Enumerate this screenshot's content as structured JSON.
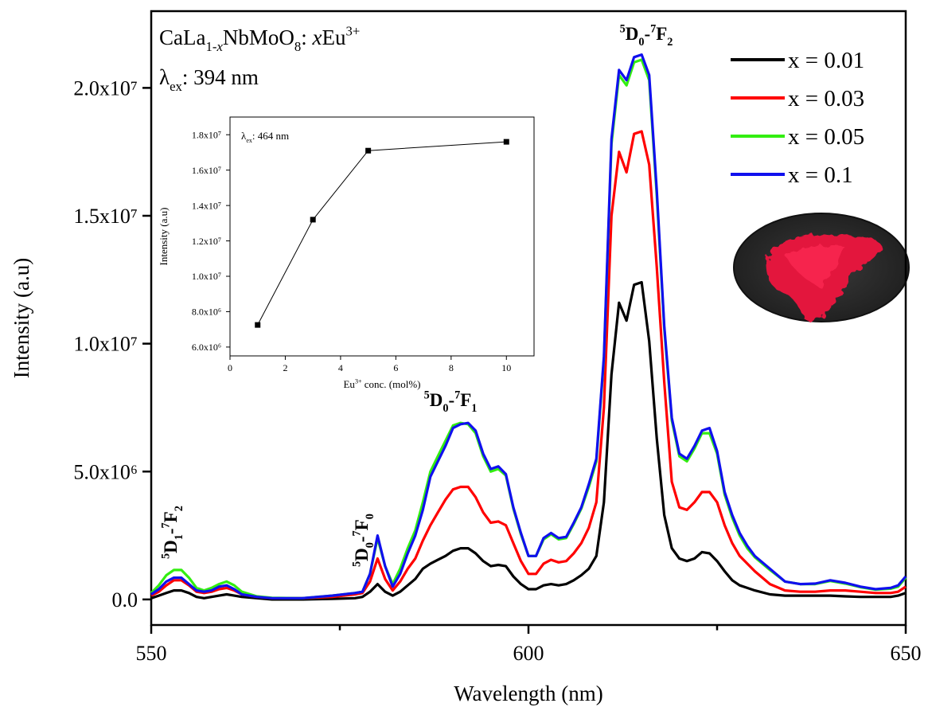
{
  "chart_data": [
    {
      "type": "line",
      "x_label": "Wavelength (nm)",
      "y_label": "Intensity (a.u)",
      "formula": [
        "CaLa",
        "1-",
        "x",
        "NbMoO",
        "8",
        ": ",
        "x",
        "Eu",
        "3+"
      ],
      "excitation": [
        "λ",
        "ex",
        ": 394 nm"
      ],
      "transitions": [
        [
          "5",
          "D",
          "1",
          "-",
          "7",
          "F",
          "2"
        ],
        [
          "5",
          "D",
          "0",
          "-",
          "7",
          "F",
          "0"
        ],
        [
          "5",
          "D",
          "0",
          "-",
          "7",
          "F",
          "1"
        ],
        [
          "5",
          "D",
          "0",
          "-",
          "7",
          "F",
          "2"
        ]
      ],
      "xlim": [
        550,
        650
      ],
      "xticks": [
        550,
        600,
        650
      ],
      "xminorticks": [
        575,
        625
      ],
      "ylim": [
        -1000000.0,
        23000000.0
      ],
      "yticks": [
        {
          "value": 0,
          "label": "0.0"
        },
        {
          "value": 5000000.0,
          "label": "5.0x10⁶"
        },
        {
          "value": 10000000.0,
          "label": "1.0x10⁷"
        },
        {
          "value": 15000000.0,
          "label": "1.5x10⁷"
        },
        {
          "value": 20000000.0,
          "label": "2.0x10⁷"
        }
      ],
      "legend": "upper right",
      "x": [
        550,
        551,
        552,
        553,
        554,
        555,
        556,
        557,
        558,
        559,
        560,
        561,
        562,
        564,
        566,
        570,
        574,
        577,
        578,
        579,
        580,
        581,
        582,
        583,
        584,
        585,
        586,
        587,
        588,
        589,
        590,
        591,
        592,
        593,
        594,
        595,
        596,
        597,
        598,
        599,
        600,
        601,
        602,
        603,
        604,
        605,
        606,
        607,
        608,
        609,
        610,
        611,
        612,
        613,
        614,
        615,
        616,
        617,
        618,
        619,
        620,
        621,
        622,
        623,
        624,
        625,
        626,
        627,
        628,
        629,
        630,
        632,
        634,
        636,
        638,
        640,
        642,
        644,
        646,
        648,
        649,
        650
      ],
      "series": [
        {
          "name": "x = 0.01",
          "color": "#000000",
          "values": [
            50000.0,
            150000.0,
            250000.0,
            350000.0,
            350000.0,
            250000.0,
            100000.0,
            50000.0,
            100000.0,
            150000.0,
            200000.0,
            150000.0,
            100000.0,
            50000.0,
            0,
            0,
            20000.0,
            50000.0,
            100000.0,
            300000.0,
            600000.0,
            300000.0,
            150000.0,
            300000.0,
            550000.0,
            800000.0,
            1200000.0,
            1400000.0,
            1550000.0,
            1700000.0,
            1900000.0,
            2000000.0,
            2000000.0,
            1800000.0,
            1500000.0,
            1300000.0,
            1350000.0,
            1300000.0,
            900000.0,
            600000.0,
            400000.0,
            400000.0,
            550000.0,
            600000.0,
            550000.0,
            600000.0,
            750000.0,
            950000.0,
            1200000.0,
            1700000.0,
            3800000.0,
            8800000.0,
            11600000.0,
            10900000.0,
            12300000.0,
            12400000.0,
            10100000.0,
            6300000.0,
            3300000.0,
            2000000.0,
            1600000.0,
            1500000.0,
            1600000.0,
            1850000.0,
            1800000.0,
            1500000.0,
            1100000.0,
            750000.0,
            550000.0,
            450000.0,
            350000.0,
            200000.0,
            150000.0,
            150000.0,
            150000.0,
            150000.0,
            120000.0,
            100000.0,
            100000.0,
            100000.0,
            150000.0,
            250000.0
          ]
        },
        {
          "name": "x = 0.03",
          "color": "#ff0000",
          "values": [
            150000.0,
            300000.0,
            550000.0,
            750000.0,
            750000.0,
            550000.0,
            300000.0,
            250000.0,
            300000.0,
            400000.0,
            450000.0,
            350000.0,
            200000.0,
            100000.0,
            50000.0,
            50000.0,
            100000.0,
            200000.0,
            250000.0,
            700000.0,
            1600000.0,
            800000.0,
            350000.0,
            700000.0,
            1200000.0,
            1600000.0,
            2300000.0,
            2900000.0,
            3400000.0,
            3900000.0,
            4300000.0,
            4400000.0,
            4400000.0,
            4000000.0,
            3400000.0,
            3000000.0,
            3050000.0,
            2900000.0,
            2200000.0,
            1500000.0,
            1000000.0,
            1000000.0,
            1400000.0,
            1550000.0,
            1450000.0,
            1500000.0,
            1800000.0,
            2200000.0,
            2800000.0,
            3800000.0,
            7500000.0,
            15000000.0,
            17500000.0,
            16700000.0,
            18200000.0,
            18300000.0,
            17000000.0,
            13000000.0,
            8500000.0,
            4600000.0,
            3600000.0,
            3500000.0,
            3800000.0,
            4200000.0,
            4200000.0,
            3800000.0,
            2900000.0,
            2200000.0,
            1700000.0,
            1400000.0,
            1100000.0,
            600000.0,
            350000.0,
            300000.0,
            300000.0,
            350000.0,
            350000.0,
            300000.0,
            250000.0,
            250000.0,
            300000.0,
            500000.0
          ]
        },
        {
          "name": "x = 0.05",
          "color": "#33ee11",
          "values": [
            250000.0,
            550000.0,
            950000.0,
            1150000.0,
            1150000.0,
            850000.0,
            450000.0,
            350000.0,
            450000.0,
            600000.0,
            700000.0,
            550000.0,
            300000.0,
            120000.0,
            60000.0,
            50000.0,
            150000.0,
            250000.0,
            300000.0,
            1000000.0,
            2400000.0,
            1300000.0,
            600000.0,
            1200000.0,
            2000000.0,
            2700000.0,
            3800000.0,
            5000000.0,
            5600000.0,
            6200000.0,
            6800000.0,
            6900000.0,
            6850000.0,
            6500000.0,
            5600000.0,
            5000000.0,
            5100000.0,
            4850000.0,
            3550000.0,
            2550000.0,
            1700000.0,
            1700000.0,
            2350000.0,
            2550000.0,
            2350000.0,
            2400000.0,
            2950000.0,
            3550000.0,
            4400000.0,
            5400000.0,
            9400000.0,
            17800000.0,
            20500000.0,
            20100000.0,
            21000000.0,
            21100000.0,
            20300000.0,
            15800000.0,
            10600000.0,
            7000000.0,
            5600000.0,
            5400000.0,
            5900000.0,
            6500000.0,
            6500000.0,
            5700000.0,
            4100000.0,
            3200000.0,
            2500000.0,
            2000000.0,
            1650000.0,
            1150000.0,
            700000.0,
            600000.0,
            600000.0,
            720000.0,
            620000.0,
            480000.0,
            380000.0,
            420000.0,
            500000.0,
            850000.0
          ]
        },
        {
          "name": "x = 0.1",
          "color": "#1010ee",
          "values": [
            200000.0,
            400000.0,
            700000.0,
            850000.0,
            850000.0,
            600000.0,
            350000.0,
            300000.0,
            350000.0,
            500000.0,
            550000.0,
            400000.0,
            200000.0,
            100000.0,
            50000.0,
            50000.0,
            150000.0,
            250000.0,
            300000.0,
            1000000.0,
            2500000.0,
            1300000.0,
            500000.0,
            1000000.0,
            1800000.0,
            2500000.0,
            3500000.0,
            4800000.0,
            5400000.0,
            6000000.0,
            6700000.0,
            6850000.0,
            6900000.0,
            6600000.0,
            5700000.0,
            5100000.0,
            5200000.0,
            4900000.0,
            3600000.0,
            2600000.0,
            1700000.0,
            1700000.0,
            2400000.0,
            2600000.0,
            2400000.0,
            2450000.0,
            3000000.0,
            3600000.0,
            4500000.0,
            5500000.0,
            9500000.0,
            18000000.0,
            20700000.0,
            20300000.0,
            21200000.0,
            21300000.0,
            20500000.0,
            16000000.0,
            10700000.0,
            7100000.0,
            5700000.0,
            5500000.0,
            6000000.0,
            6600000.0,
            6700000.0,
            5800000.0,
            4200000.0,
            3300000.0,
            2600000.0,
            2100000.0,
            1700000.0,
            1200000.0,
            700000.0,
            600000.0,
            620000.0,
            750000.0,
            650000.0,
            500000.0,
            400000.0,
            450000.0,
            550000.0,
            900000.0
          ]
        }
      ]
    },
    {
      "type": "line",
      "x_label": [
        "Eu",
        "3+",
        " conc. (mol%)"
      ],
      "y_label": "Intensity (a.u)",
      "excitation": [
        "λ",
        "ex",
        ": 464 nm"
      ],
      "xlim": [
        0,
        11
      ],
      "xticks": [
        0,
        2,
        4,
        6,
        8,
        10
      ],
      "ylim": [
        5500000.0,
        19000000.0
      ],
      "yticks": [
        {
          "value": 6000000.0,
          "label": "6.0x10⁶"
        },
        {
          "value": 8000000.0,
          "label": "8.0x10⁶"
        },
        {
          "value": 10000000.0,
          "label": "1.0x10⁷"
        },
        {
          "value": 12000000.0,
          "label": "1.2x10⁷"
        },
        {
          "value": 14000000.0,
          "label": "1.4x10⁷"
        },
        {
          "value": 16000000.0,
          "label": "1.6x10⁷"
        },
        {
          "value": 18000000.0,
          "label": "1.8x10⁷"
        }
      ],
      "x": [
        1,
        3,
        5,
        10
      ],
      "values": [
        7250000.0,
        13200000.0,
        17100000.0,
        17600000.0
      ],
      "color": "#000000",
      "marker": "square"
    }
  ]
}
